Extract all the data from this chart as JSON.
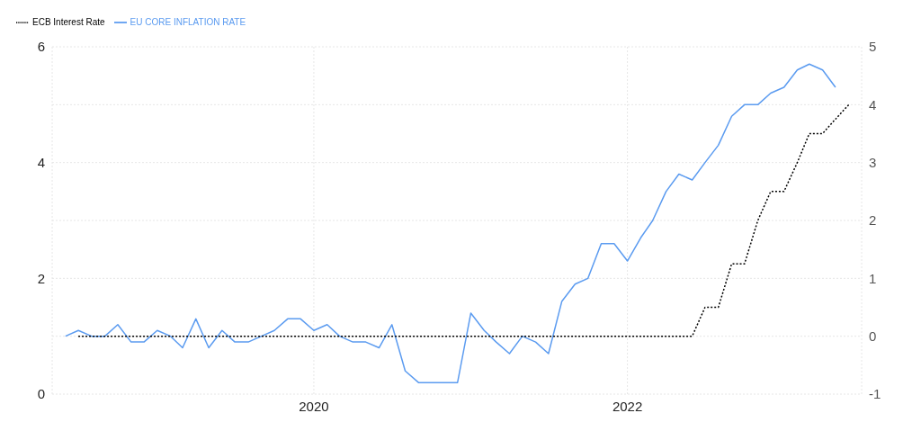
{
  "chart_data": {
    "type": "line",
    "grid": true,
    "legend": "top left",
    "marker": "none",
    "xlim": [
      "2018-05",
      "2023-07"
    ],
    "xticks": [
      {
        "value": "2020-01",
        "label": "2020"
      },
      {
        "value": "2022-01",
        "label": "2022"
      }
    ],
    "ylim": [
      0,
      6
    ],
    "yticks": [
      0,
      2,
      4,
      6
    ],
    "y2lim": [
      -1,
      5
    ],
    "y2ticks": [
      -1,
      0,
      1,
      2,
      3,
      4,
      5
    ],
    "series": [
      {
        "name": "EU CORE INFLATION RATE",
        "color": "#5b9bf0",
        "line_style": "solid",
        "x": [
          "2018-06",
          "2018-07",
          "2018-08",
          "2018-09",
          "2018-10",
          "2018-11",
          "2018-12",
          "2019-01",
          "2019-02",
          "2019-03",
          "2019-04",
          "2019-05",
          "2019-06",
          "2019-07",
          "2019-08",
          "2019-09",
          "2019-10",
          "2019-11",
          "2019-12",
          "2020-01",
          "2020-02",
          "2020-03",
          "2020-04",
          "2020-05",
          "2020-06",
          "2020-07",
          "2020-08",
          "2020-09",
          "2020-10",
          "2020-11",
          "2020-12",
          "2021-01",
          "2021-02",
          "2021-03",
          "2021-04",
          "2021-05",
          "2021-06",
          "2021-07",
          "2021-08",
          "2021-09",
          "2021-10",
          "2021-11",
          "2021-12",
          "2022-01",
          "2022-02",
          "2022-03",
          "2022-04",
          "2022-05",
          "2022-06",
          "2022-07",
          "2022-08",
          "2022-09",
          "2022-10",
          "2022-11",
          "2022-12",
          "2023-01",
          "2023-02",
          "2023-03",
          "2023-04",
          "2023-05"
        ],
        "values": [
          1.0,
          1.1,
          1.0,
          1.0,
          1.2,
          0.9,
          0.9,
          1.1,
          1.0,
          0.8,
          1.3,
          0.8,
          1.1,
          0.9,
          0.9,
          1.0,
          1.1,
          1.3,
          1.3,
          1.1,
          1.2,
          1.0,
          0.9,
          0.9,
          0.8,
          1.2,
          0.4,
          0.2,
          0.2,
          0.2,
          0.2,
          1.4,
          1.1,
          0.9,
          0.7,
          1.0,
          0.9,
          0.7,
          1.6,
          1.9,
          2.0,
          2.6,
          2.6,
          2.3,
          2.7,
          3.0,
          3.5,
          3.8,
          3.7,
          4.0,
          4.3,
          4.8,
          5.0,
          5.0,
          5.2,
          5.3,
          5.6,
          5.7,
          5.6,
          5.3
        ]
      },
      {
        "name": "ECB Interest Rate",
        "color": "#000000",
        "line_style": "dotted",
        "axis": "y2",
        "x": [
          "2018-07",
          "2018-08",
          "2018-09",
          "2018-10",
          "2018-11",
          "2018-12",
          "2019-01",
          "2019-02",
          "2019-03",
          "2019-04",
          "2019-05",
          "2019-06",
          "2019-07",
          "2019-08",
          "2019-09",
          "2019-10",
          "2019-11",
          "2019-12",
          "2020-01",
          "2020-02",
          "2020-03",
          "2020-04",
          "2020-05",
          "2020-06",
          "2020-07",
          "2020-08",
          "2020-09",
          "2020-10",
          "2020-11",
          "2020-12",
          "2021-01",
          "2021-02",
          "2021-03",
          "2021-04",
          "2021-05",
          "2021-06",
          "2021-07",
          "2021-08",
          "2021-09",
          "2021-10",
          "2021-11",
          "2021-12",
          "2022-01",
          "2022-02",
          "2022-03",
          "2022-04",
          "2022-05",
          "2022-06",
          "2022-07",
          "2022-08",
          "2022-09",
          "2022-10",
          "2022-11",
          "2022-12",
          "2023-01",
          "2023-02",
          "2023-03",
          "2023-04",
          "2023-05",
          "2023-06"
        ],
        "values": [
          0,
          0,
          0,
          0,
          0,
          0,
          0,
          0,
          0,
          0,
          0,
          0,
          0,
          0,
          0,
          0,
          0,
          0,
          0,
          0,
          0,
          0,
          0,
          0,
          0,
          0,
          0,
          0,
          0,
          0,
          0,
          0,
          0,
          0,
          0,
          0,
          0,
          0,
          0,
          0,
          0,
          0,
          0,
          0,
          0,
          0,
          0,
          0,
          0.5,
          0.5,
          1.25,
          1.25,
          2.0,
          2.5,
          2.5,
          3.0,
          3.5,
          3.5,
          3.75,
          4.0
        ]
      }
    ]
  }
}
